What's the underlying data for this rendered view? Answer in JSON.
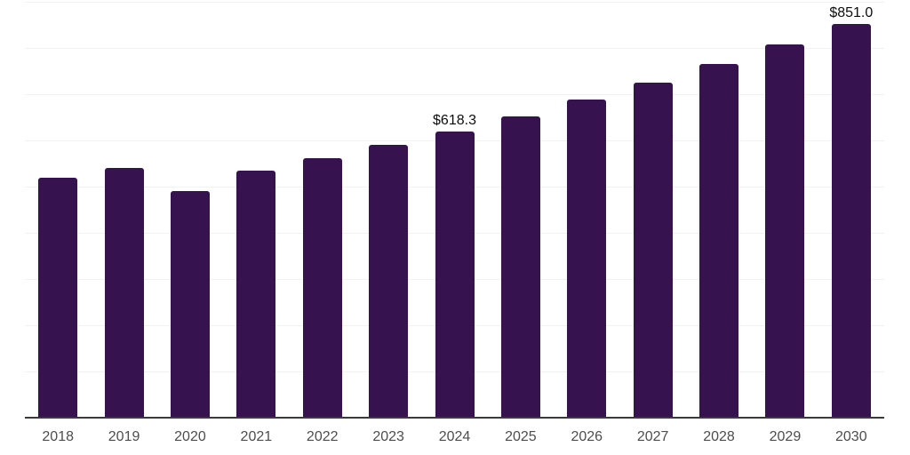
{
  "chart_data": {
    "type": "bar",
    "title": "",
    "xlabel": "",
    "ylabel": "",
    "categories": [
      "2018",
      "2019",
      "2020",
      "2021",
      "2022",
      "2023",
      "2024",
      "2025",
      "2026",
      "2027",
      "2028",
      "2029",
      "2030"
    ],
    "values": [
      519,
      541,
      491,
      534,
      561,
      590,
      618.3,
      652.1,
      687.8,
      725.4,
      765.1,
      806.9,
      851.0
    ],
    "data_labels": [
      "",
      "",
      "",
      "",
      "",
      "",
      "$618.3",
      "",
      "",
      "",
      "",
      "",
      "$851.0"
    ],
    "ylim": [
      0,
      900
    ],
    "gridline_interval": 100,
    "grid": true,
    "legend_position": "none",
    "colors": {
      "bar": "#36124e",
      "axis_line": "#3a3a3a",
      "gridline": "#f2f2f2",
      "tick_label": "#4d4d4d",
      "data_label": "#0d0d0d",
      "background": "#ffffff"
    }
  }
}
